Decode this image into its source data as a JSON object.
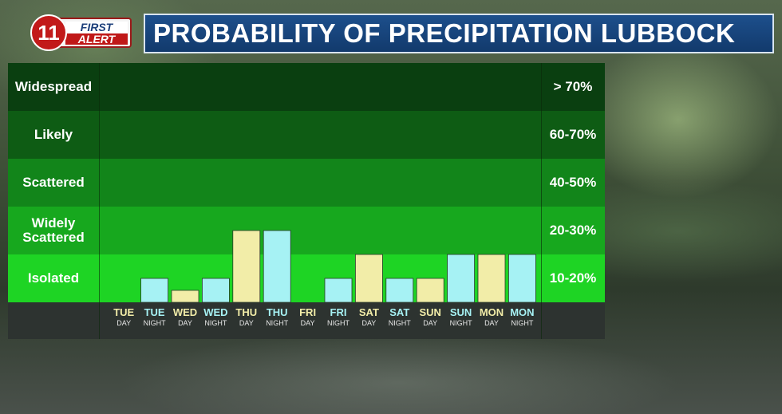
{
  "logo": {
    "number": "11",
    "line1": "FIRST",
    "line2": "ALERT"
  },
  "title": "PROBABILITY OF PRECIPITATION LUBBOCK",
  "colors": {
    "title_bg": "#1a4680",
    "day_bar": "#f2eda8",
    "night_bar": "#a6f2f4",
    "day_label": "#f2eda8",
    "night_label": "#a6f2f4",
    "band_widespread": "#0a3f10",
    "band_likely": "#0e5c14",
    "band_scattered": "#12851a",
    "band_widely_scattered": "#17a81e",
    "band_isolated": "#1ed424",
    "footer_bg": "#2d3330"
  },
  "chart_data": {
    "type": "bar",
    "title": "PROBABILITY OF PRECIPITATION LUBBOCK",
    "categories": [
      "TUE DAY",
      "TUE NIGHT",
      "WED DAY",
      "WED NIGHT",
      "THU DAY",
      "THU NIGHT",
      "FRI DAY",
      "FRI NIGHT",
      "SAT DAY",
      "SAT NIGHT",
      "SUN DAY",
      "SUN NIGHT",
      "MON DAY",
      "MON NIGHT"
    ],
    "x_labels": [
      {
        "day": "TUE",
        "period": "DAY"
      },
      {
        "day": "TUE",
        "period": "NIGHT"
      },
      {
        "day": "WED",
        "period": "DAY"
      },
      {
        "day": "WED",
        "period": "NIGHT"
      },
      {
        "day": "THU",
        "period": "DAY"
      },
      {
        "day": "THU",
        "period": "NIGHT"
      },
      {
        "day": "FRI",
        "period": "DAY"
      },
      {
        "day": "FRI",
        "period": "NIGHT"
      },
      {
        "day": "SAT",
        "period": "DAY"
      },
      {
        "day": "SAT",
        "period": "NIGHT"
      },
      {
        "day": "SUN",
        "period": "DAY"
      },
      {
        "day": "SUN",
        "period": "NIGHT"
      },
      {
        "day": "MON",
        "period": "DAY"
      },
      {
        "day": "MON",
        "period": "NIGHT"
      }
    ],
    "values": [
      0,
      5,
      2.5,
      5,
      15,
      15,
      0,
      5,
      10,
      5,
      5,
      10,
      10,
      10
    ],
    "ylim": [
      0,
      50
    ],
    "bands": [
      {
        "label": "Widespread",
        "range": "> 70%",
        "color_key": "band_widespread"
      },
      {
        "label": "Likely",
        "range": "60-70%",
        "color_key": "band_likely"
      },
      {
        "label": "Scattered",
        "range": "40-50%",
        "color_key": "band_scattered"
      },
      {
        "label": "Widely\nScattered",
        "range": "20-30%",
        "color_key": "band_widely_scattered"
      },
      {
        "label": "Isolated",
        "range": "10-20%",
        "color_key": "band_isolated"
      }
    ],
    "xlabel": "",
    "ylabel": ""
  }
}
